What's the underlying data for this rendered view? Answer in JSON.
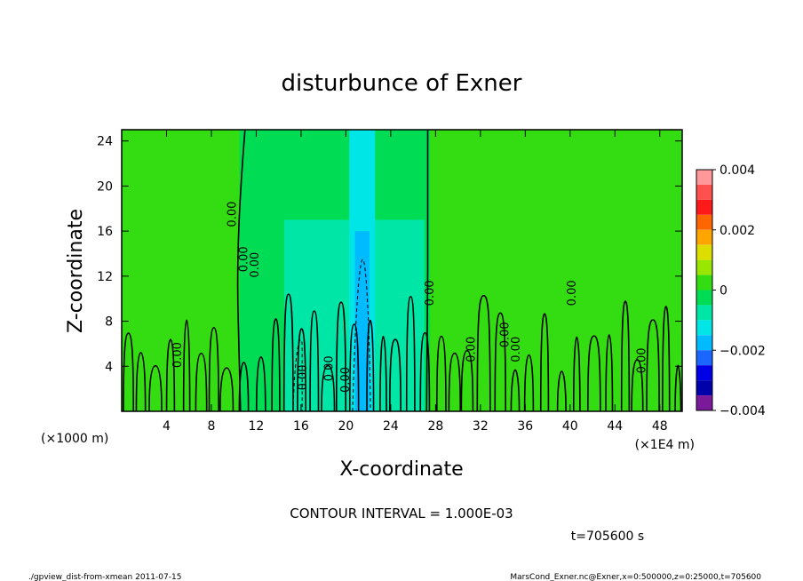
{
  "chart_data": {
    "type": "heatmap",
    "title": "disturbunce of Exner",
    "xlabel": "X-coordinate",
    "ylabel": "Z-coordinate",
    "x_unit": "(×1E4 m)",
    "y_unit": "(×1000 m)",
    "xlim": [
      0,
      50
    ],
    "ylim": [
      0,
      25
    ],
    "x_ticks": [
      4,
      8,
      12,
      16,
      20,
      24,
      28,
      32,
      36,
      40,
      44,
      48
    ],
    "y_ticks": [
      4,
      8,
      12,
      16,
      20,
      24
    ],
    "colorbar": {
      "min": -0.004,
      "max": 0.004,
      "tick_values": [
        0.004,
        0.002,
        0,
        -0.002,
        -0.004
      ],
      "tick_labels": [
        "0.004",
        "0.002",
        "0",
        "−0.002",
        "−0.004"
      ],
      "levels": [
        {
          "from": 0.0035,
          "to": 0.004,
          "color": "#ff9999"
        },
        {
          "from": 0.003,
          "to": 0.0035,
          "color": "#ff5050"
        },
        {
          "from": 0.0025,
          "to": 0.003,
          "color": "#ff1a1a"
        },
        {
          "from": 0.002,
          "to": 0.0025,
          "color": "#ff6600"
        },
        {
          "from": 0.0015,
          "to": 0.002,
          "color": "#ffa500"
        },
        {
          "from": 0.001,
          "to": 0.0015,
          "color": "#dddd00"
        },
        {
          "from": 0.0005,
          "to": 0.001,
          "color": "#99e600"
        },
        {
          "from": 0.0,
          "to": 0.0005,
          "color": "#33dd11"
        },
        {
          "from": -0.0005,
          "to": 0.0,
          "color": "#00dd55"
        },
        {
          "from": -0.001,
          "to": -0.0005,
          "color": "#00e6a6"
        },
        {
          "from": -0.0015,
          "to": -0.001,
          "color": "#00e6e6"
        },
        {
          "from": -0.002,
          "to": -0.0015,
          "color": "#00bbff"
        },
        {
          "from": -0.0025,
          "to": -0.002,
          "color": "#1a66ff"
        },
        {
          "from": -0.003,
          "to": -0.0025,
          "color": "#0000e6"
        },
        {
          "from": -0.0035,
          "to": -0.003,
          "color": "#0000aa"
        },
        {
          "from": -0.004,
          "to": -0.0035,
          "color": "#7a1a9a"
        }
      ]
    },
    "regions": [
      {
        "x_from": 0,
        "x_to": 50,
        "z_from": 0,
        "z_to": 25,
        "level": 7
      },
      {
        "x_from": 10.5,
        "x_to": 27.5,
        "z_from": 0,
        "z_to": 25,
        "level": 8
      },
      {
        "x_from": 14.5,
        "x_to": 27,
        "z_from": 0,
        "z_to": 17,
        "level": 9
      },
      {
        "x_from": 20.3,
        "x_to": 22.6,
        "z_from": 0,
        "z_to": 25,
        "level": 10
      },
      {
        "x_from": 20.8,
        "x_to": 22.1,
        "z_from": 0,
        "z_to": 16,
        "level": 11
      },
      {
        "x_from": 15.2,
        "x_to": 16.2,
        "z_from": 0,
        "z_to": 7.5,
        "level": 9
      },
      {
        "x_from": 25.4,
        "x_to": 26.2,
        "z_from": 0,
        "z_to": 7,
        "level": 9
      }
    ],
    "contour_labels": [
      {
        "x": 10.2,
        "z": 17.5,
        "text": "0.00"
      },
      {
        "x": 11.2,
        "z": 13.5,
        "text": "0.00"
      },
      {
        "x": 12.2,
        "z": 13.0,
        "text": "0.00"
      },
      {
        "x": 5.3,
        "z": 5.0,
        "text": "0.00"
      },
      {
        "x": 16.5,
        "z": 3.0,
        "text": "0.00"
      },
      {
        "x": 18.8,
        "z": 3.8,
        "text": "0.00"
      },
      {
        "x": 20.3,
        "z": 2.8,
        "text": "0.00"
      },
      {
        "x": 27.8,
        "z": 10.5,
        "text": "0.00"
      },
      {
        "x": 31.5,
        "z": 5.5,
        "text": "0.00"
      },
      {
        "x": 34.5,
        "z": 6.8,
        "text": "0.00"
      },
      {
        "x": 35.5,
        "z": 5.5,
        "text": "0.00"
      },
      {
        "x": 40.5,
        "z": 10.5,
        "text": "0.00"
      },
      {
        "x": 46.7,
        "z": 4.5,
        "text": "0.00"
      }
    ],
    "contour_interval_text": "CONTOUR INTERVAL = 1.000E-03",
    "time_text": "t=705600  s"
  },
  "footer": {
    "left": "./gpview_dist-from-xmean  2011-07-15",
    "right": "MarsCond_Exner.nc@Exner,x=0:500000,z=0:25000,t=705600"
  }
}
